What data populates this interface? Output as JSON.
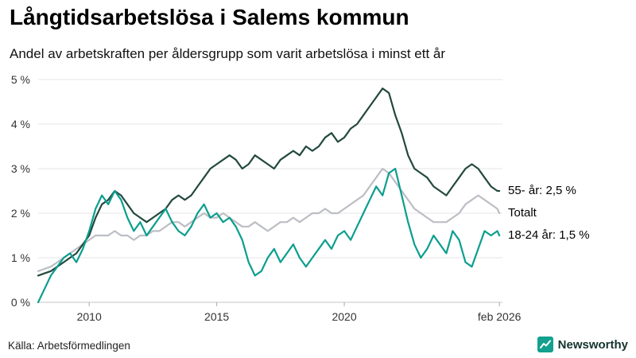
{
  "header": {
    "title": "Långtidsarbetslösa i Salems kommun",
    "subtitle": "Andel av arbetskraften per åldersgrupp som varit arbetslösa i minst ett år"
  },
  "footer": {
    "source": "Källa: Arbetsförmedlingen",
    "brand": "Newsworthy",
    "brand_color": "#13a08e"
  },
  "chart_data": {
    "type": "line",
    "title": "Långtidsarbetslösa i Salems kommun",
    "subtitle": "Andel av arbetskraften per åldersgrupp som varit arbetslösa i minst ett år",
    "grid": true,
    "legend_position": "right-edge-labels",
    "xlabel": "",
    "ylabel": "",
    "xlim": [
      2008,
      2026.2
    ],
    "ylim": [
      0,
      5
    ],
    "yticks": [
      {
        "value": 0,
        "label": "0 %"
      },
      {
        "value": 1,
        "label": "1 %"
      },
      {
        "value": 2,
        "label": "2 %"
      },
      {
        "value": 3,
        "label": "3 %"
      },
      {
        "value": 4,
        "label": "4 %"
      },
      {
        "value": 5,
        "label": "5 %"
      }
    ],
    "xticks": [
      {
        "value": 2010,
        "label": "2010"
      },
      {
        "value": 2015,
        "label": "2015"
      },
      {
        "value": 2020,
        "label": "2020"
      },
      {
        "value": 2026.08,
        "label": "feb 2026"
      }
    ],
    "x": [
      2008.0,
      2008.25,
      2008.5,
      2008.75,
      2009.0,
      2009.25,
      2009.5,
      2009.75,
      2010.0,
      2010.25,
      2010.5,
      2010.75,
      2011.0,
      2011.25,
      2011.5,
      2011.75,
      2012.0,
      2012.25,
      2012.5,
      2012.75,
      2013.0,
      2013.25,
      2013.5,
      2013.75,
      2014.0,
      2014.25,
      2014.5,
      2014.75,
      2015.0,
      2015.25,
      2015.5,
      2015.75,
      2016.0,
      2016.25,
      2016.5,
      2016.75,
      2017.0,
      2017.25,
      2017.5,
      2017.75,
      2018.0,
      2018.25,
      2018.5,
      2018.75,
      2019.0,
      2019.25,
      2019.5,
      2019.75,
      2020.0,
      2020.25,
      2020.5,
      2020.75,
      2021.0,
      2021.25,
      2021.5,
      2021.75,
      2022.0,
      2022.25,
      2022.5,
      2022.75,
      2023.0,
      2023.25,
      2023.5,
      2023.75,
      2024.0,
      2024.25,
      2024.5,
      2024.75,
      2025.0,
      2025.25,
      2025.5,
      2025.75,
      2026.0,
      2026.08
    ],
    "series": [
      {
        "id": "55ar",
        "name": "55- år",
        "end_label": "55- år: 2,5 %",
        "end_value": "2,5 %",
        "color": "#23493f",
        "width": 2.2,
        "values": [
          0.6,
          0.65,
          0.7,
          0.8,
          0.9,
          1.0,
          1.1,
          1.3,
          1.5,
          1.9,
          2.2,
          2.3,
          2.5,
          2.4,
          2.2,
          2.0,
          1.9,
          1.8,
          1.9,
          2.0,
          2.1,
          2.3,
          2.4,
          2.3,
          2.4,
          2.6,
          2.8,
          3.0,
          3.1,
          3.2,
          3.3,
          3.2,
          3.0,
          3.1,
          3.3,
          3.2,
          3.1,
          3.0,
          3.2,
          3.3,
          3.4,
          3.3,
          3.5,
          3.4,
          3.5,
          3.7,
          3.8,
          3.6,
          3.7,
          3.9,
          4.0,
          4.2,
          4.4,
          4.6,
          4.8,
          4.7,
          4.2,
          3.8,
          3.3,
          3.0,
          2.9,
          2.8,
          2.6,
          2.5,
          2.4,
          2.6,
          2.8,
          3.0,
          3.1,
          3.0,
          2.8,
          2.6,
          2.5,
          2.5
        ]
      },
      {
        "id": "totalt",
        "name": "Totalt",
        "end_label": "Totalt",
        "end_value": "2,0 %",
        "color": "#bcbec4",
        "width": 2.2,
        "values": [
          0.7,
          0.75,
          0.8,
          0.9,
          1.0,
          1.1,
          1.2,
          1.3,
          1.4,
          1.5,
          1.5,
          1.5,
          1.6,
          1.5,
          1.5,
          1.4,
          1.5,
          1.5,
          1.6,
          1.6,
          1.7,
          1.8,
          1.8,
          1.7,
          1.8,
          1.9,
          2.0,
          1.9,
          1.9,
          2.0,
          1.9,
          1.8,
          1.7,
          1.7,
          1.8,
          1.7,
          1.6,
          1.7,
          1.8,
          1.8,
          1.9,
          1.8,
          1.9,
          2.0,
          2.0,
          2.1,
          2.0,
          2.0,
          2.1,
          2.2,
          2.3,
          2.4,
          2.6,
          2.8,
          3.0,
          2.9,
          2.7,
          2.5,
          2.3,
          2.1,
          2.0,
          1.9,
          1.8,
          1.8,
          1.8,
          1.9,
          2.0,
          2.2,
          2.3,
          2.4,
          2.3,
          2.2,
          2.1,
          2.0
        ]
      },
      {
        "id": "1824ar",
        "name": "18-24 år",
        "end_label": "18-24 år: 1,5 %",
        "end_value": "1,5 %",
        "color": "#0b9e8e",
        "width": 2.2,
        "values": [
          0.0,
          0.3,
          0.6,
          0.8,
          1.0,
          1.1,
          0.9,
          1.2,
          1.6,
          2.1,
          2.4,
          2.2,
          2.5,
          2.3,
          1.9,
          1.6,
          1.8,
          1.5,
          1.7,
          1.9,
          2.1,
          1.8,
          1.6,
          1.5,
          1.7,
          2.0,
          2.2,
          1.9,
          2.0,
          1.8,
          1.9,
          1.7,
          1.4,
          0.9,
          0.6,
          0.7,
          1.0,
          1.2,
          0.9,
          1.1,
          1.3,
          1.0,
          0.8,
          1.0,
          1.2,
          1.4,
          1.2,
          1.5,
          1.6,
          1.4,
          1.7,
          2.0,
          2.3,
          2.6,
          2.4,
          2.9,
          3.0,
          2.4,
          1.8,
          1.3,
          1.0,
          1.2,
          1.5,
          1.3,
          1.1,
          1.6,
          1.4,
          0.9,
          0.8,
          1.2,
          1.6,
          1.5,
          1.6,
          1.5
        ]
      }
    ]
  }
}
